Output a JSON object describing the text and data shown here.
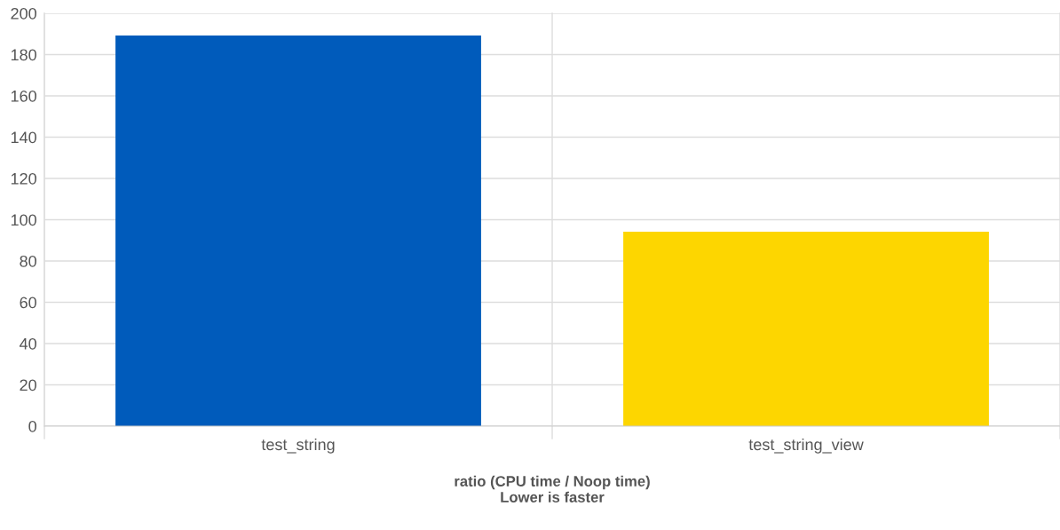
{
  "chart_data": {
    "type": "bar",
    "xlabel": "ratio (CPU time / Noop time)\nLower is faster",
    "categories": [
      "test_string",
      "test_string_view"
    ],
    "values": [
      189.3,
      94.2
    ],
    "colors": [
      "#005bbb",
      "#fdd600"
    ],
    "ylim": [
      0,
      200
    ],
    "yticks": [
      0,
      20,
      40,
      60,
      80,
      100,
      120,
      140,
      160,
      180,
      200
    ],
    "grid": true,
    "legend": false
  }
}
